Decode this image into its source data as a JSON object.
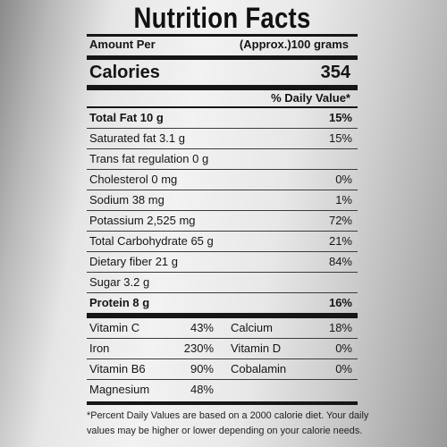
{
  "title": "Nutrition Facts",
  "serving": {
    "amount_label": "Amount Per",
    "approx_label": "(Approx.)100 grams"
  },
  "calories": {
    "label": "Calories",
    "value": "354"
  },
  "daily_value_header": "% Daily Value*",
  "nutrients": [
    {
      "name": "Total Fat 10 g",
      "pct": "15%",
      "bold": true
    },
    {
      "name": "Saturated fat 3.1 g",
      "pct": "15%",
      "bold": false
    },
    {
      "name": "Trans fat regulation 0 g",
      "pct": "",
      "bold": false
    },
    {
      "name": "Cholesterol 0 mg",
      "pct": "0%",
      "bold": false
    },
    {
      "name": "Sodium 38 mg",
      "pct": "1%",
      "bold": false
    },
    {
      "name": "Potassium 2,525 mg",
      "pct": "72%",
      "bold": false
    },
    {
      "name": "Total Carbohydrate 65 g",
      "pct": "21%",
      "bold": false
    },
    {
      "name": "Dietary fiber 21 g",
      "pct": "84%",
      "bold": false
    },
    {
      "name": "Sugar 3.2 g",
      "pct": "",
      "bold": false
    },
    {
      "name": "Protein 8 g",
      "pct": "16%",
      "bold": true
    }
  ],
  "vitamins": [
    {
      "name1": "Vitamin C",
      "pct1": "43%",
      "name2": "Calcium",
      "pct2": "18%"
    },
    {
      "name1": "Iron",
      "pct1": "230%",
      "name2": "Vitamin D",
      "pct2": "0%"
    },
    {
      "name1": "Vitamin B6",
      "pct1": "90%",
      "name2": "Cobalamin",
      "pct2": "0%"
    },
    {
      "name1": "Magnesium",
      "pct1": "48%",
      "name2": "",
      "pct2": ""
    }
  ],
  "footnote": {
    "line1": "*Percent Daily Values are based on a 2000 calorie diet. Your daily",
    "line2": "values may be higher or lower depending on your calorie needs."
  }
}
